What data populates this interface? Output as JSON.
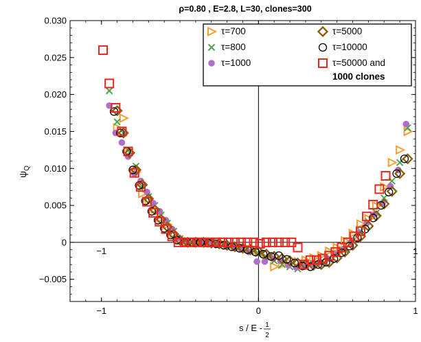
{
  "chart_data": {
    "type": "scatter",
    "title": "ρ=0.80 , E=2.8, L=30, clones=300",
    "ylabel": "ψ",
    "ylabel_sub": "Q",
    "xlabel": "s / E - ",
    "xlabel_frac_num": "1",
    "xlabel_frac_den": "2",
    "xlim": [
      -1.2,
      1.0
    ],
    "ylim": [
      -0.008,
      0.03
    ],
    "xticks": [
      {
        "value": -1,
        "label": "−1"
      },
      {
        "value": 0,
        "label": "0"
      },
      {
        "value": 1,
        "label": "1"
      }
    ],
    "yticks": [
      {
        "value": 0.03,
        "label": "0.030"
      },
      {
        "value": 0.025,
        "label": "0.025"
      },
      {
        "value": 0.02,
        "label": "0.020"
      },
      {
        "value": 0.015,
        "label": "0.015"
      },
      {
        "value": 0.01,
        "label": "0.010"
      },
      {
        "value": 0.005,
        "label": "0.005"
      },
      {
        "value": 0,
        "label": "0"
      },
      {
        "value": -0.005,
        "label": "−0.005"
      }
    ],
    "inner_xtick_labels": [
      {
        "value": -1,
        "label": "−1"
      },
      {
        "value": 1,
        "label": "1"
      }
    ],
    "zero_lines": true,
    "legend_position": "top-right",
    "series": [
      {
        "name": "τ=700",
        "marker": "triangle-right",
        "color": "#f5a030",
        "x": [
          -0.9,
          -0.86,
          -0.82,
          -0.78,
          -0.74,
          -0.7,
          -0.66,
          -0.62,
          -0.58,
          -0.54,
          -0.5,
          -0.45,
          -0.4,
          -0.35,
          -0.3,
          -0.25,
          -0.2,
          -0.15,
          -0.1,
          -0.05,
          0.0,
          0.05,
          0.1,
          0.15,
          0.2,
          0.25,
          0.3,
          0.35,
          0.4,
          0.45,
          0.5,
          0.55,
          0.6,
          0.65,
          0.7,
          0.75,
          0.8,
          0.85,
          0.9,
          0.95
        ],
        "y": [
          0.0155,
          0.0168,
          0.0122,
          0.0095,
          0.0066,
          0.0056,
          0.0045,
          0.0033,
          0.0024,
          0.0012,
          0.0004,
          0.0001,
          0.0,
          0.0,
          -0.0001,
          -0.0002,
          -0.0003,
          -0.0005,
          -0.0007,
          -0.001,
          -0.0013,
          -0.0021,
          -0.0033,
          -0.003,
          -0.0028,
          -0.0026,
          -0.0024,
          -0.0021,
          -0.0018,
          -0.0012,
          -0.0007,
          0.0002,
          0.0012,
          0.0025,
          0.0032,
          0.0049,
          0.0075,
          0.0108,
          0.0125,
          0.015
        ]
      },
      {
        "name": "τ=800",
        "marker": "x",
        "color": "#4ca64c",
        "x": [
          -0.95,
          -0.9,
          -0.86,
          -0.82,
          -0.78,
          -0.74,
          -0.7,
          -0.66,
          -0.62,
          -0.58,
          -0.54,
          -0.5,
          -0.45,
          -0.4,
          -0.35,
          -0.3,
          -0.25,
          -0.2,
          -0.15,
          -0.1,
          -0.05,
          0.0,
          0.05,
          0.1,
          0.15,
          0.2,
          0.25,
          0.3,
          0.35,
          0.4,
          0.45,
          0.5,
          0.55,
          0.6,
          0.65,
          0.7,
          0.75,
          0.8,
          0.85,
          0.9,
          0.95
        ],
        "y": [
          0.0205,
          0.0163,
          0.0148,
          0.0122,
          0.0103,
          0.0076,
          0.0062,
          0.005,
          0.0037,
          0.0026,
          0.0015,
          0.0005,
          0.0002,
          0.0,
          0.0,
          -0.0001,
          -0.0002,
          -0.0004,
          -0.0006,
          -0.0009,
          -0.0012,
          -0.0015,
          -0.002,
          -0.0025,
          -0.003,
          -0.0033,
          -0.0036,
          -0.0033,
          -0.0029,
          -0.0026,
          -0.0022,
          -0.0016,
          -0.001,
          0.0002,
          0.0015,
          0.0028,
          0.004,
          0.006,
          0.0083,
          0.0108,
          0.0155
        ]
      },
      {
        "name": "τ=1000",
        "marker": "circle-filled",
        "color": "#b070c8",
        "x": [
          -0.95,
          -0.91,
          -0.87,
          -0.83,
          -0.79,
          -0.75,
          -0.71,
          -0.67,
          -0.63,
          -0.59,
          -0.55,
          -0.51,
          -0.46,
          -0.41,
          -0.36,
          -0.31,
          -0.26,
          -0.21,
          -0.16,
          -0.11,
          -0.06,
          -0.01,
          0.04,
          0.09,
          0.14,
          0.19,
          0.24,
          0.29,
          0.34,
          0.39,
          0.44,
          0.49,
          0.54,
          0.59,
          0.64,
          0.69,
          0.74,
          0.79,
          0.84,
          0.89,
          0.94
        ],
        "y": [
          0.0185,
          0.0148,
          0.0135,
          0.0116,
          0.0093,
          0.0083,
          0.0068,
          0.0053,
          0.0042,
          0.003,
          0.0018,
          0.0006,
          0.0002,
          0.0,
          0.0,
          -0.0001,
          -0.0002,
          -0.0004,
          -0.0006,
          -0.0009,
          -0.0013,
          -0.0026,
          -0.0026,
          -0.0022,
          -0.0025,
          -0.0031,
          -0.0034,
          -0.0033,
          -0.003,
          -0.0027,
          -0.0022,
          -0.0016,
          -0.0009,
          0.0,
          0.0013,
          0.0026,
          0.0038,
          0.0053,
          0.0076,
          0.0098,
          0.016
        ]
      },
      {
        "name": "τ=5000",
        "marker": "diamond",
        "color": "#8b5e0a",
        "x": [
          -0.9,
          -0.86,
          -0.82,
          -0.78,
          -0.74,
          -0.7,
          -0.66,
          -0.62,
          -0.58,
          -0.54,
          -0.5,
          -0.45,
          -0.4,
          -0.35,
          -0.3,
          -0.25,
          -0.2,
          -0.15,
          -0.1,
          -0.05,
          0.0,
          0.05,
          0.1,
          0.15,
          0.2,
          0.25,
          0.3,
          0.35,
          0.4,
          0.45,
          0.5,
          0.55,
          0.6,
          0.65,
          0.7,
          0.75,
          0.8,
          0.85,
          0.9,
          0.95
        ],
        "y": [
          0.0178,
          0.0148,
          0.0121,
          0.0098,
          0.0078,
          0.0059,
          0.0044,
          0.0031,
          0.0021,
          0.0011,
          0.0003,
          0.0,
          0.0,
          0.0,
          -0.0001,
          -0.0002,
          -0.0004,
          -0.0006,
          -0.0008,
          -0.001,
          -0.0012,
          -0.0016,
          -0.0019,
          -0.0022,
          -0.0025,
          -0.0028,
          -0.003,
          -0.0031,
          -0.003,
          -0.0027,
          -0.0021,
          -0.0013,
          -0.0004,
          0.0008,
          0.0022,
          0.0036,
          0.0052,
          0.0069,
          0.0093,
          0.0113
        ]
      },
      {
        "name": "τ=10000",
        "marker": "circle-open",
        "color": "#000000",
        "x": [
          -0.92,
          -0.88,
          -0.84,
          -0.8,
          -0.76,
          -0.72,
          -0.68,
          -0.64,
          -0.6,
          -0.56,
          -0.52,
          -0.47,
          -0.42,
          -0.37,
          -0.32,
          -0.27,
          -0.22,
          -0.17,
          -0.12,
          -0.07,
          -0.02,
          0.03,
          0.08,
          0.13,
          0.18,
          0.23,
          0.28,
          0.33,
          0.38,
          0.43,
          0.48,
          0.53,
          0.58,
          0.63,
          0.68,
          0.73,
          0.78,
          0.83,
          0.88,
          0.93
        ],
        "y": [
          0.0177,
          0.0148,
          0.0123,
          0.0098,
          0.0077,
          0.0056,
          0.0042,
          0.003,
          0.0019,
          0.001,
          0.0003,
          0.0,
          0.0,
          0.0,
          -0.0001,
          -0.0002,
          -0.0004,
          -0.0006,
          -0.0008,
          -0.001,
          -0.0013,
          -0.0016,
          -0.0019,
          -0.0018,
          -0.0023,
          -0.0028,
          -0.0032,
          -0.0033,
          -0.003,
          -0.0027,
          -0.0022,
          -0.0014,
          -0.0005,
          0.0006,
          0.0018,
          0.0033,
          0.005,
          0.0068,
          0.0093,
          0.0113
        ]
      },
      {
        "name": "τ=50000 and",
        "name_bold": "1000 clones",
        "marker": "square",
        "color": "#e8281e",
        "x": [
          -0.99,
          -0.95,
          -0.91,
          -0.87,
          -0.83,
          -0.79,
          -0.75,
          -0.71,
          -0.67,
          -0.63,
          -0.59,
          -0.55,
          -0.51,
          -0.47,
          -0.43,
          -0.39,
          -0.35,
          -0.31,
          -0.27,
          -0.23,
          -0.19,
          -0.15,
          -0.11,
          -0.07,
          -0.03,
          0.01,
          0.05,
          0.09,
          0.13,
          0.17,
          0.21,
          0.25,
          0.29,
          0.33,
          0.37,
          0.41,
          0.45,
          0.49,
          0.53,
          0.57,
          0.61,
          0.65,
          0.69,
          0.73,
          0.77,
          0.81
        ],
        "y": [
          0.026,
          0.0215,
          0.0182,
          0.015,
          0.0123,
          0.0094,
          0.0075,
          0.0055,
          0.004,
          0.0028,
          0.0018,
          0.0008,
          0.0,
          0.0,
          0.0,
          0.0,
          0.0,
          0.0,
          0.0,
          0.0,
          0.0,
          0.0,
          0.0,
          0.0,
          0.0,
          -0.0002,
          0.0,
          0.0,
          0.0,
          0.0,
          0.0,
          -0.0007,
          -0.003,
          -0.0024,
          -0.0024,
          -0.0022,
          -0.0018,
          -0.0013,
          -0.0007,
          0.0,
          0.0008,
          0.0015,
          0.0035,
          0.0051,
          0.0072,
          0.009
        ]
      }
    ]
  }
}
